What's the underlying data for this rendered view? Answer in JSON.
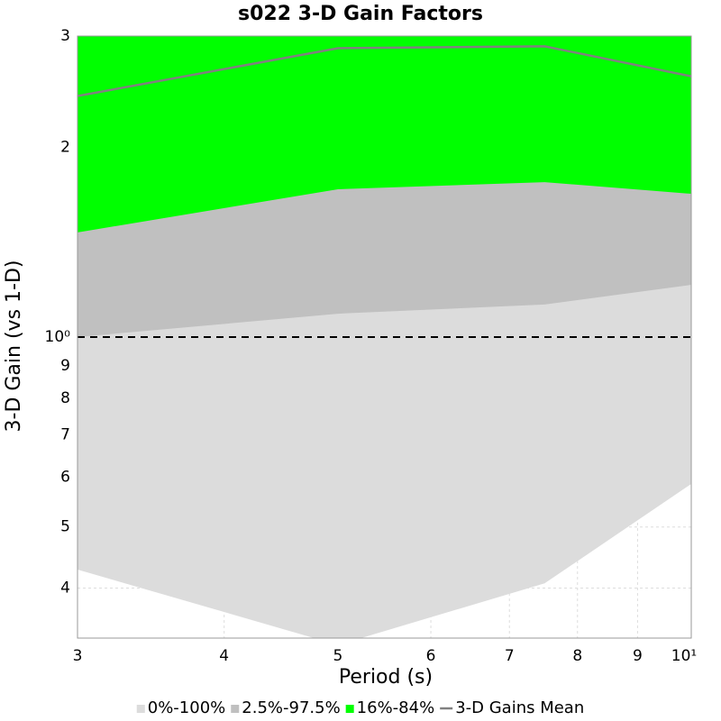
{
  "chart_data": {
    "type": "band",
    "title": "s022 3-D Gain Factors",
    "xlabel": "Period (s)",
    "ylabel": "3-D Gain (vs 1-D)",
    "xscale": "log",
    "yscale": "log",
    "x": [
      3,
      5,
      7.5,
      10
    ],
    "xlim": [
      3,
      10
    ],
    "ylim": [
      0.3333,
      3
    ],
    "xticks": [
      3,
      4,
      5,
      6,
      7,
      8,
      9,
      {
        "value": 10,
        "label": "10¹"
      }
    ],
    "yticks": [
      {
        "value": 0.4,
        "label": "4"
      },
      {
        "value": 0.5,
        "label": "5"
      },
      {
        "value": 0.6,
        "label": "6"
      },
      {
        "value": 0.7,
        "label": "7"
      },
      {
        "value": 0.8,
        "label": "8"
      },
      {
        "value": 0.9,
        "label": "9"
      },
      {
        "value": 1,
        "label": "10⁰"
      },
      2,
      3
    ],
    "grid": true,
    "reference_line": 1,
    "bands": [
      {
        "name": "0%-100%",
        "color": "#dcdcdc",
        "lower": [
          0.428,
          0.325,
          0.407,
          0.585
        ],
        "upper": [
          3,
          3,
          3,
          3
        ]
      },
      {
        "name": "2.5%-97.5%",
        "color": "#c0c0c0",
        "lower": [
          1.0,
          1.089,
          1.126,
          1.21
        ],
        "upper": [
          3,
          3,
          3,
          3
        ]
      },
      {
        "name": "16%-84%",
        "color": "#00ff00",
        "lower": [
          1.465,
          1.715,
          1.76,
          1.687
        ],
        "upper": [
          3,
          3,
          3,
          3
        ]
      }
    ],
    "series": [
      {
        "name": "3-D Gains Mean",
        "color": "#808080",
        "values": [
          2.41,
          2.87,
          2.89,
          2.59
        ]
      }
    ],
    "legend": "bottom"
  }
}
